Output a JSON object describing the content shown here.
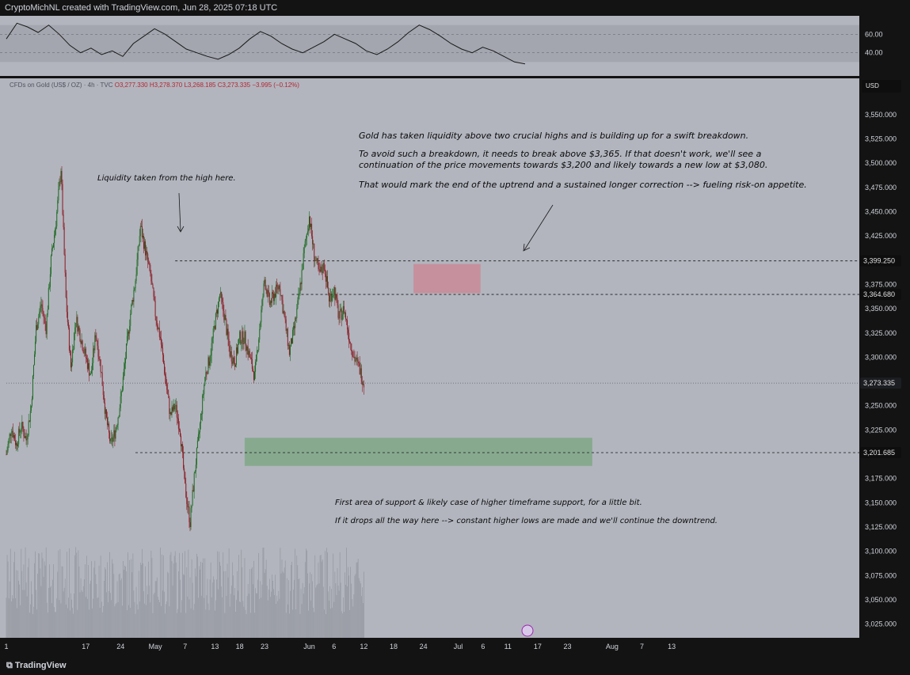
{
  "header": {
    "created_by": "CryptoMichNL created with TradingView.com, Jun 28, 2025 07:18 UTC"
  },
  "footer": {
    "logo_text": "TradingView"
  },
  "legend": {
    "symbol": "CFDs on Gold (US$ / OZ) · 4h · TVC",
    "open": "O3,277.330",
    "high": "H3,278.370",
    "low": "L3,268.185",
    "close": "C3,273.335",
    "change": "−3.995 (−0.12%)"
  },
  "currency": "USD",
  "annotations": {
    "top_line1": "Gold has taken liquidity above two crucial highs and is building up for a swift breakdown.",
    "top_line2": "To avoid such a breakdown, it needs to break above $3,365. If that doesn't work, we'll see a",
    "top_line3": "continuation of the price movements towards $3,200 and likely towards a new low at $3,080.",
    "top_line4": "That would mark the end of the uptrend and a sustained longer correction --> fueling risk-on appetite.",
    "liquidity": "Liquidity taken from the high here.",
    "support_line1": "First area of support & likely case of higher timeframe support, for a little bit.",
    "support_line2": "If it drops all the way here --> constant higher lows are made and we'll continue the downtrend."
  },
  "colors": {
    "background": "#b2b5be",
    "up_candle": "#1e6b22",
    "down_candle": "#8a1c24",
    "resistance_zone": "#c98a96",
    "support_zone": "#7fa887",
    "price_tag": "#0e0e0e",
    "frame": "#131313"
  },
  "chart_data": {
    "type": "candlestick",
    "timeframe": "4h",
    "y_axis": {
      "ticks": [
        3025,
        3050,
        3075,
        3100,
        3125,
        3150,
        3175,
        3200,
        3225,
        3250,
        3275,
        3300,
        3325,
        3350,
        3375,
        3400,
        3425,
        3450,
        3475,
        3500,
        3525,
        3550
      ],
      "tick_labels": [
        "3,025.000",
        "3,050.000",
        "3,075.000",
        "3,100.000",
        "3,125.000",
        "3,150.000",
        "3,175.000",
        "3,200.000",
        "3,225.000",
        "3,250.000",
        "3,275.000",
        "3,300.000",
        "3,325.000",
        "3,350.000",
        "3,375.000",
        "3,400.000",
        "3,425.000",
        "3,450.000",
        "3,475.000",
        "3,500.000",
        "3,525.000",
        "3,550.000"
      ],
      "range": [
        3000,
        3570
      ]
    },
    "x_axis": {
      "labels": [
        "1",
        "17",
        "24",
        "May",
        "7",
        "13",
        "18",
        "23",
        "Jun",
        "6",
        "12",
        "18",
        "24",
        "Jul",
        "6",
        "11",
        "17",
        "23",
        "Aug",
        "7",
        "13"
      ],
      "day_index": [
        0,
        16,
        23,
        30,
        36,
        42,
        47,
        52,
        61,
        66,
        72,
        78,
        84,
        91,
        96,
        101,
        107,
        113,
        122,
        128,
        134
      ]
    },
    "price_levels": [
      {
        "value": 3399.25,
        "label": "3,399.250"
      },
      {
        "value": 3364.68,
        "label": "3,364.680"
      },
      {
        "value": 3273.335,
        "label": "3,273.335"
      },
      {
        "value": 3201.685,
        "label": "3,201.685"
      }
    ],
    "zones": [
      {
        "name": "resistance",
        "from_day": 82,
        "to_day": 95.5,
        "low": 3366,
        "high": 3396
      },
      {
        "name": "support",
        "from_day": 48,
        "to_day": 118,
        "low": 3188,
        "high": 3217
      }
    ],
    "price_path": [
      [
        0,
        3200
      ],
      [
        1,
        3228
      ],
      [
        2,
        3210
      ],
      [
        3,
        3230
      ],
      [
        4,
        3215
      ],
      [
        5,
        3250
      ],
      [
        6,
        3330
      ],
      [
        7,
        3355
      ],
      [
        8,
        3330
      ],
      [
        9,
        3400
      ],
      [
        10,
        3440
      ],
      [
        11,
        3495
      ],
      [
        12,
        3360
      ],
      [
        13,
        3290
      ],
      [
        14,
        3340
      ],
      [
        15,
        3320
      ],
      [
        16,
        3300
      ],
      [
        17,
        3280
      ],
      [
        18,
        3325
      ],
      [
        19,
        3290
      ],
      [
        20,
        3240
      ],
      [
        21,
        3210
      ],
      [
        22,
        3225
      ],
      [
        23,
        3255
      ],
      [
        24,
        3300
      ],
      [
        25,
        3345
      ],
      [
        26,
        3380
      ],
      [
        27,
        3435
      ],
      [
        28,
        3410
      ],
      [
        29,
        3385
      ],
      [
        30,
        3345
      ],
      [
        31,
        3320
      ],
      [
        32,
        3280
      ],
      [
        33,
        3240
      ],
      [
        34,
        3250
      ],
      [
        35,
        3225
      ],
      [
        36,
        3165
      ],
      [
        37,
        3130
      ],
      [
        38,
        3185
      ],
      [
        39,
        3230
      ],
      [
        40,
        3280
      ],
      [
        41,
        3300
      ],
      [
        42,
        3335
      ],
      [
        43,
        3365
      ],
      [
        44,
        3340
      ],
      [
        45,
        3305
      ],
      [
        46,
        3295
      ],
      [
        47,
        3320
      ],
      [
        48,
        3320
      ],
      [
        49,
        3300
      ],
      [
        50,
        3280
      ],
      [
        51,
        3330
      ],
      [
        52,
        3380
      ],
      [
        53,
        3355
      ],
      [
        54,
        3365
      ],
      [
        55,
        3375
      ],
      [
        56,
        3340
      ],
      [
        57,
        3305
      ],
      [
        58,
        3330
      ],
      [
        59,
        3365
      ],
      [
        60,
        3410
      ],
      [
        61,
        3445
      ],
      [
        62,
        3405
      ],
      [
        63,
        3385
      ],
      [
        64,
        3395
      ],
      [
        65,
        3360
      ],
      [
        66,
        3370
      ],
      [
        67,
        3340
      ],
      [
        68,
        3350
      ],
      [
        69,
        3322
      ],
      [
        70,
        3300
      ],
      [
        71,
        3290
      ],
      [
        72,
        3273
      ]
    ],
    "rsi": {
      "levels": [
        60,
        40
      ],
      "tick_labels": [
        "60.00",
        "40.00"
      ],
      "values": [
        55,
        72,
        68,
        62,
        70,
        60,
        48,
        40,
        45,
        38,
        42,
        36,
        50,
        58,
        66,
        60,
        52,
        44,
        40,
        36,
        33,
        38,
        45,
        55,
        63,
        58,
        50,
        44,
        40,
        46,
        52,
        60,
        55,
        50,
        42,
        38,
        44,
        52,
        62,
        70,
        65,
        58,
        50,
        44,
        40,
        46,
        42,
        36,
        30,
        28
      ],
      "range": [
        20,
        80
      ]
    },
    "volume_range": [
      0,
      100
    ]
  }
}
